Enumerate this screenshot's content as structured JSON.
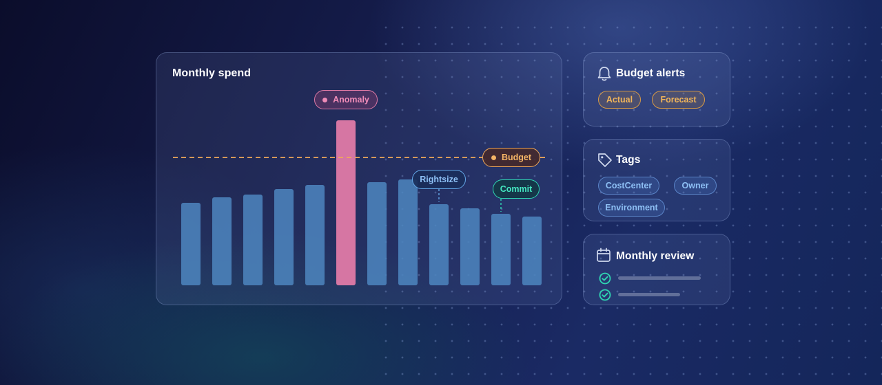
{
  "colors": {
    "bar": "#4d86bf",
    "anomaly_bar": "#e07aa6",
    "budget_line": "#f0a95a",
    "rightsize": "#63a6e6",
    "commit": "#2fd6b2"
  },
  "chart_card": {
    "title": "Monthly spend"
  },
  "chart_data": {
    "type": "bar",
    "title": "Monthly spend",
    "values": [
      60,
      64,
      66,
      70,
      73,
      120,
      75,
      77,
      59,
      56,
      52,
      50
    ],
    "anomaly_index": 5,
    "budget": 93,
    "ylim": [
      0,
      120
    ],
    "annotations": [
      {
        "label": "Anomaly",
        "bar_index": 5,
        "style": "anomaly"
      },
      {
        "label": "Budget",
        "style": "budget"
      },
      {
        "label": "Rightsize",
        "bar_index": 8,
        "style": "rightsize"
      },
      {
        "label": "Commit",
        "bar_index": 10,
        "style": "commit"
      }
    ]
  },
  "budget_alerts": {
    "title": "Budget alerts",
    "icon": "bell-icon",
    "chips": [
      "Actual",
      "Forecast"
    ]
  },
  "tags": {
    "title": "Tags",
    "icon": "tag-icon",
    "chips": [
      "CostCenter",
      "Owner",
      "Environment"
    ]
  },
  "monthly_review": {
    "title": "Monthly review",
    "icon": "calendar-icon",
    "items": [
      {
        "checked": true,
        "progress": 1.0
      },
      {
        "checked": true,
        "progress": 0.75
      }
    ]
  }
}
